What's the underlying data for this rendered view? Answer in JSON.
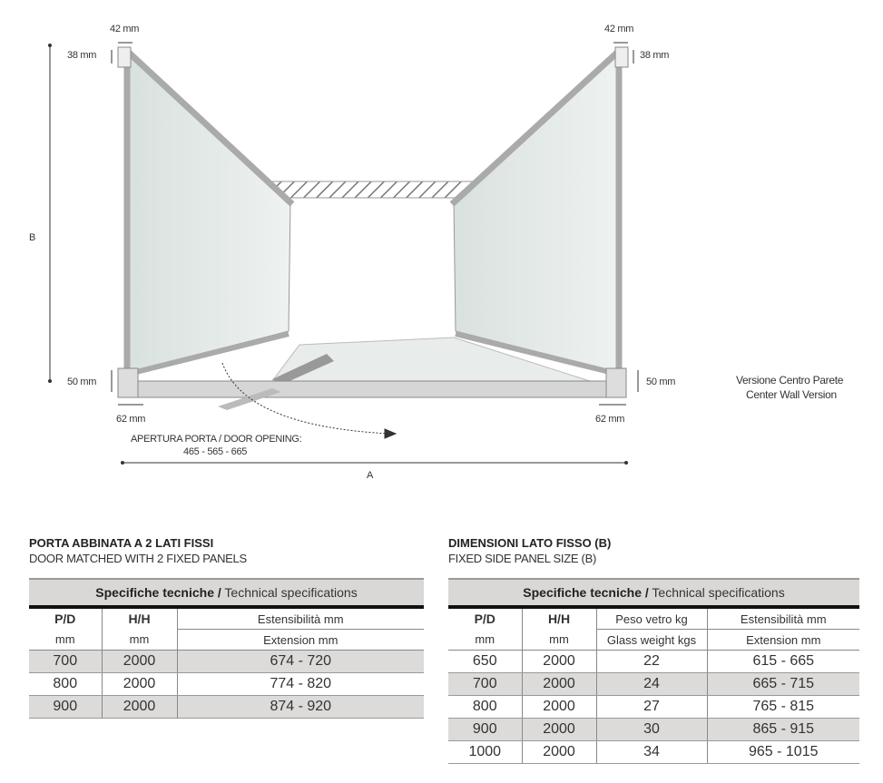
{
  "diagram": {
    "top_left_width": "42 mm",
    "top_right_width": "42 mm",
    "top_left_height": "38 mm",
    "top_right_height": "38 mm",
    "height_label": "B",
    "bottom_left_height": "50 mm",
    "bottom_right_height": "50 mm",
    "bottom_left_width": "62 mm",
    "bottom_right_width": "62 mm",
    "door_opening_label": "APERTURA PORTA / DOOR OPENING:",
    "door_opening_values": "465 - 565 - 665",
    "width_label": "A",
    "version_it": "Versione Centro Parete",
    "version_en": "Center Wall Version"
  },
  "left_table": {
    "title": "PORTA ABBINATA A 2 LATI FISSI",
    "subtitle": "DOOR MATCHED WITH 2 FIXED PANELS",
    "caption_bold": "Specifiche tecniche /",
    "caption": " Technical specifications",
    "headers": [
      [
        "P/D",
        "mm"
      ],
      [
        "H/H",
        "mm"
      ],
      [
        "Estensibilità mm",
        "Extension mm"
      ]
    ],
    "rows": [
      [
        "700",
        "2000",
        "674 - 720"
      ],
      [
        "800",
        "2000",
        "774 - 820"
      ],
      [
        "900",
        "2000",
        "874 - 920"
      ]
    ]
  },
  "right_table": {
    "title": "DIMENSIONI LATO FISSO (B)",
    "subtitle": "FIXED SIDE PANEL SIZE (B)",
    "caption_bold": "Specifiche tecniche /",
    "caption": " Technical specifications",
    "headers": [
      [
        "P/D",
        "mm"
      ],
      [
        "H/H",
        "mm"
      ],
      [
        "Peso vetro kg",
        "Glass weight kgs"
      ],
      [
        "Estensibilità mm",
        "Extension mm"
      ]
    ],
    "rows": [
      [
        "650",
        "2000",
        "22",
        "615 - 665"
      ],
      [
        "700",
        "2000",
        "24",
        "665 - 715"
      ],
      [
        "800",
        "2000",
        "27",
        "765 - 815"
      ],
      [
        "900",
        "2000",
        "30",
        "865 - 915"
      ],
      [
        "1000",
        "2000",
        "34",
        "965 - 1015"
      ]
    ]
  }
}
